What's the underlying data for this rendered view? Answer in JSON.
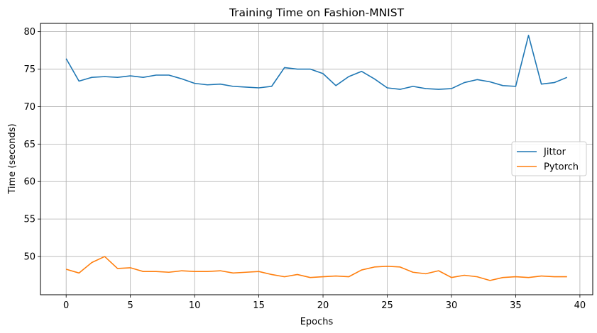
{
  "chart_data": {
    "type": "line",
    "title": "Training Time on Fashion-MNIST",
    "xlabel": "Epochs",
    "ylabel": "Time (seconds)",
    "xlim": [
      -2,
      41
    ],
    "ylim": [
      44.9,
      81.1
    ],
    "xticks": [
      0,
      5,
      10,
      15,
      20,
      25,
      30,
      35,
      40
    ],
    "yticks": [
      50,
      55,
      60,
      65,
      70,
      75,
      80
    ],
    "grid": true,
    "legend_position": "center-right",
    "x": [
      0,
      1,
      2,
      3,
      4,
      5,
      6,
      7,
      8,
      9,
      10,
      11,
      12,
      13,
      14,
      15,
      16,
      17,
      18,
      19,
      20,
      21,
      22,
      23,
      24,
      25,
      26,
      27,
      28,
      29,
      30,
      31,
      32,
      33,
      34,
      35,
      36,
      37,
      38,
      39
    ],
    "series": [
      {
        "name": "Jittor",
        "color": "#1f77b4",
        "values": [
          76.4,
          73.4,
          73.9,
          74.0,
          73.9,
          74.1,
          73.9,
          74.2,
          74.2,
          73.7,
          73.1,
          72.9,
          73.0,
          72.7,
          72.6,
          72.5,
          72.7,
          75.2,
          75.0,
          75.0,
          74.4,
          72.8,
          74.0,
          74.7,
          73.7,
          72.5,
          72.3,
          72.7,
          72.4,
          72.3,
          72.4,
          73.2,
          73.6,
          73.3,
          72.8,
          72.7,
          79.5,
          73.0,
          73.2,
          73.9
        ]
      },
      {
        "name": "Pytorch",
        "color": "#ff7f0e",
        "values": [
          48.3,
          47.8,
          49.2,
          50.0,
          48.4,
          48.5,
          48.0,
          48.0,
          47.9,
          48.1,
          48.0,
          48.0,
          48.1,
          47.8,
          47.9,
          48.0,
          47.6,
          47.3,
          47.6,
          47.2,
          47.3,
          47.4,
          47.3,
          48.2,
          48.6,
          48.7,
          48.6,
          47.9,
          47.7,
          48.1,
          47.2,
          47.5,
          47.3,
          46.8,
          47.2,
          47.3,
          47.2,
          47.4,
          47.3,
          47.3
        ]
      }
    ]
  }
}
